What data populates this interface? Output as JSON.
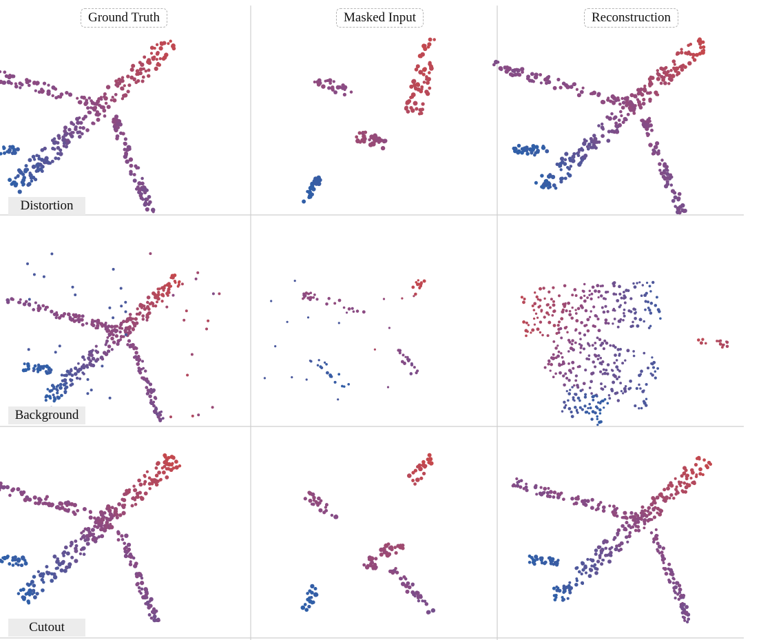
{
  "columns": [
    "Ground Truth",
    "Masked Input",
    "Reconstruction"
  ],
  "rows": [
    "Distortion",
    "Background",
    "Cutout"
  ],
  "colors": {
    "nose_red": "#c5484c",
    "mid_mauve": "#8a4b84",
    "tail_blue": "#2f5fa8",
    "divider": "#cfcfcf"
  },
  "panels": [
    {
      "row": "Distortion",
      "column": "Ground Truth",
      "content": "airplane-point-cloud"
    },
    {
      "row": "Distortion",
      "column": "Masked Input",
      "content": "partial-point-cloud"
    },
    {
      "row": "Distortion",
      "column": "Reconstruction",
      "content": "airplane-point-cloud"
    },
    {
      "row": "Background",
      "column": "Ground Truth",
      "content": "airplane-point-cloud-with-noise"
    },
    {
      "row": "Background",
      "column": "Masked Input",
      "content": "sparse-point-cloud"
    },
    {
      "row": "Background",
      "column": "Reconstruction",
      "content": "scattered-point-cloud"
    },
    {
      "row": "Cutout",
      "column": "Ground Truth",
      "content": "airplane-point-cloud"
    },
    {
      "row": "Cutout",
      "column": "Masked Input",
      "content": "partial-point-cloud"
    },
    {
      "row": "Cutout",
      "column": "Reconstruction",
      "content": "airplane-point-cloud"
    }
  ]
}
